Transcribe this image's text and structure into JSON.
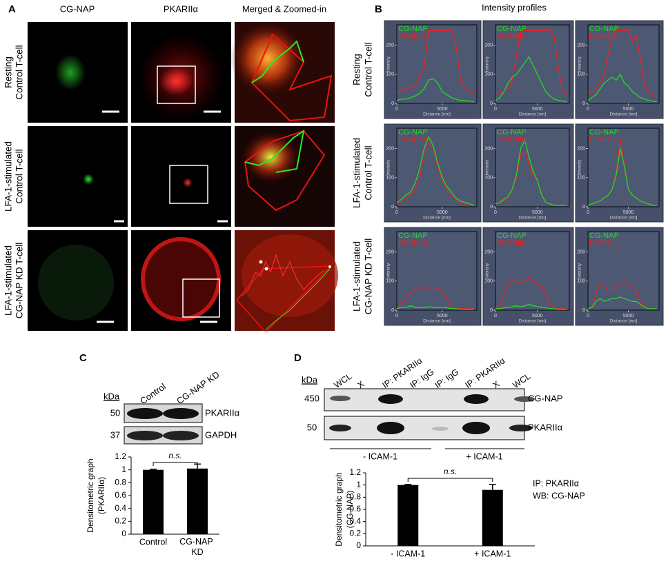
{
  "figure": {
    "A": {
      "label": "A",
      "columns": [
        "CG-NAP",
        "PKARIIα",
        "Merged & Zoomed-in"
      ],
      "rows": [
        [
          "Resting",
          "Control T-cell"
        ],
        [
          "LFA-1-stimulated",
          "Control T-cell"
        ],
        [
          "LFA-1-stimulated",
          "CG-NAP KD T-cell"
        ]
      ]
    },
    "B": {
      "label": "B",
      "title": "Intensity profiles",
      "rows": [
        [
          "Resting",
          "Control T-cell"
        ],
        [
          "LFA-1-stimulated",
          "Control T-cell"
        ],
        [
          "LFA-1-stimulated",
          "CG-NAP KD T-cell"
        ]
      ]
    },
    "C": {
      "label": "C",
      "blot": {
        "unit": "kDa",
        "lanes": [
          "Control",
          "CG-NAP KD"
        ],
        "markers": [
          50,
          37
        ],
        "proteins": [
          "PKARIIα",
          "GAPDH"
        ]
      }
    },
    "D": {
      "label": "D",
      "blot": {
        "unit": "kDa",
        "lanes": [
          "WCL",
          "X",
          "IP: PKARIIα",
          "IP: IgG",
          "IP: IgG",
          "IP: PKARIIα",
          "X",
          "WCL"
        ],
        "markers": [
          450,
          50
        ],
        "proteins": [
          "CG-NAP",
          "PKARIIα"
        ],
        "groups": [
          "- ICAM-1",
          "+ ICAM-1"
        ]
      },
      "note": [
        "IP: PKARIIα",
        "WB: CG-NAP"
      ]
    }
  },
  "chart_data": [
    {
      "type": "line",
      "x": [
        0,
        500,
        1000,
        1500,
        2000,
        2500,
        3000,
        3500,
        4000,
        4500,
        5000,
        5500,
        6000,
        6500,
        7000,
        7500,
        8000,
        8500
      ],
      "xlim": [
        0,
        8800
      ],
      "ylim": [
        0,
        270
      ],
      "xticks": [
        0,
        5000
      ],
      "yticks": [
        0,
        100,
        200
      ],
      "xlabel": "Distance [nm]",
      "ylabel": "Intensity",
      "series": [
        {
          "name": "CG-NAP",
          "color": "#22dd22",
          "values": [
            10,
            15,
            15,
            20,
            25,
            35,
            50,
            80,
            85,
            70,
            40,
            30,
            20,
            15,
            10,
            10,
            8,
            5
          ]
        },
        {
          "name": "PKARIIα",
          "color": "#ee2222",
          "values": [
            40,
            45,
            50,
            55,
            60,
            90,
            120,
            250,
            250,
            250,
            250,
            250,
            250,
            200,
            80,
            50,
            40,
            35
          ]
        }
      ]
    },
    {
      "type": "line",
      "x": [
        0,
        500,
        1000,
        1500,
        2000,
        2500,
        3000,
        3500,
        4000,
        4500,
        5000,
        5500,
        6000,
        6500,
        7000,
        7500,
        8000,
        8500
      ],
      "xlim": [
        0,
        8800
      ],
      "ylim": [
        0,
        270
      ],
      "xticks": [
        0,
        5000
      ],
      "yticks": [
        0,
        100,
        200
      ],
      "xlabel": "Distance [nm]",
      "ylabel": "Intensity",
      "series": [
        {
          "name": "CG-NAP",
          "color": "#22dd22",
          "values": [
            10,
            20,
            40,
            70,
            90,
            100,
            120,
            140,
            160,
            130,
            100,
            70,
            40,
            25,
            15,
            10,
            8,
            5
          ]
        },
        {
          "name": "PKARIIα",
          "color": "#ee2222",
          "values": [
            30,
            35,
            40,
            50,
            80,
            160,
            250,
            250,
            250,
            250,
            250,
            250,
            250,
            250,
            230,
            120,
            40,
            30
          ]
        }
      ]
    },
    {
      "type": "line",
      "x": [
        0,
        500,
        1000,
        1500,
        2000,
        2500,
        3000,
        3500,
        4000,
        4500,
        5000,
        5500,
        6000,
        6500,
        7000,
        7500,
        8000,
        8500
      ],
      "xlim": [
        0,
        8800
      ],
      "ylim": [
        0,
        270
      ],
      "xticks": [
        0,
        5000
      ],
      "yticks": [
        0,
        100,
        200
      ],
      "xlabel": "Distance [nm]",
      "ylabel": "Intensity",
      "series": [
        {
          "name": "CG-NAP",
          "color": "#22dd22",
          "values": [
            10,
            20,
            30,
            50,
            70,
            80,
            90,
            80,
            100,
            70,
            60,
            40,
            30,
            20,
            15,
            10,
            8,
            5
          ]
        },
        {
          "name": "PKARIIα",
          "color": "#ee2222",
          "values": [
            35,
            40,
            50,
            70,
            100,
            170,
            230,
            250,
            250,
            250,
            250,
            210,
            230,
            150,
            60,
            40,
            30,
            20
          ]
        }
      ]
    },
    {
      "type": "line",
      "x": [
        0,
        500,
        1000,
        1500,
        2000,
        2500,
        3000,
        3500,
        4000,
        4500,
        5000,
        5500,
        6000,
        6500,
        7000,
        7500,
        8000,
        8500
      ],
      "xlim": [
        0,
        8800
      ],
      "ylim": [
        0,
        270
      ],
      "xticks": [
        0,
        5000
      ],
      "yticks": [
        0,
        100,
        200
      ],
      "xlabel": "Distance [nm]",
      "ylabel": "Intensity",
      "series": [
        {
          "name": "CG-NAP",
          "color": "#22dd22",
          "values": [
            15,
            25,
            40,
            50,
            80,
            130,
            200,
            240,
            210,
            150,
            100,
            70,
            50,
            30,
            20,
            15,
            10,
            5
          ]
        },
        {
          "name": "PKARIIα",
          "color": "#ee2222",
          "values": [
            10,
            20,
            30,
            40,
            60,
            100,
            180,
            220,
            200,
            140,
            90,
            60,
            40,
            20,
            15,
            10,
            5,
            5
          ]
        }
      ]
    },
    {
      "type": "line",
      "x": [
        0,
        500,
        1000,
        1500,
        2000,
        2500,
        3000,
        3500,
        4000,
        4500,
        5000,
        5500,
        6000,
        6500,
        7000,
        7500,
        8000,
        8500
      ],
      "xlim": [
        0,
        8800
      ],
      "ylim": [
        0,
        270
      ],
      "xticks": [
        0,
        5000
      ],
      "yticks": [
        0,
        100,
        200
      ],
      "xlabel": "Distance [nm]",
      "ylabel": "Intensity",
      "series": [
        {
          "name": "CG-NAP",
          "color": "#22dd22",
          "values": [
            10,
            15,
            25,
            35,
            60,
            110,
            200,
            230,
            170,
            120,
            90,
            40,
            15,
            10,
            5,
            5,
            5,
            5
          ]
        },
        {
          "name": "PKARIIα",
          "color": "#ee2222",
          "values": [
            10,
            15,
            20,
            30,
            60,
            100,
            180,
            190,
            150,
            110,
            90,
            40,
            15,
            10,
            5,
            5,
            5,
            5
          ]
        }
      ]
    },
    {
      "type": "line",
      "x": [
        0,
        500,
        1000,
        1500,
        2000,
        2500,
        3000,
        3500,
        4000,
        4500,
        5000,
        5500,
        6000,
        6500,
        7000,
        7500,
        8000,
        8500
      ],
      "xlim": [
        0,
        8800
      ],
      "ylim": [
        0,
        270
      ],
      "xticks": [
        0,
        5000
      ],
      "yticks": [
        0,
        100,
        200
      ],
      "xlabel": "Distance [nm]",
      "ylabel": "Intensity",
      "series": [
        {
          "name": "CG-NAP",
          "color": "#22dd22",
          "values": [
            5,
            10,
            15,
            20,
            30,
            40,
            60,
            110,
            200,
            140,
            60,
            40,
            30,
            20,
            15,
            10,
            5,
            5
          ]
        },
        {
          "name": "PKARIIα",
          "color": "#ee2222",
          "values": [
            5,
            10,
            15,
            20,
            30,
            40,
            60,
            120,
            230,
            150,
            60,
            40,
            30,
            20,
            15,
            10,
            5,
            5
          ]
        }
      ]
    },
    {
      "type": "line",
      "x": [
        0,
        500,
        1000,
        1500,
        2000,
        2500,
        3000,
        3500,
        4000,
        4500,
        5000,
        5500,
        6000,
        6500,
        7000,
        7500,
        8000,
        8500
      ],
      "xlim": [
        0,
        8800
      ],
      "ylim": [
        0,
        270
      ],
      "xticks": [
        0,
        5000
      ],
      "yticks": [
        0,
        100,
        200
      ],
      "xlabel": "Distance [nm]",
      "ylabel": "Intensity",
      "series": [
        {
          "name": "CG-NAP",
          "color": "#22dd22",
          "values": [
            5,
            10,
            10,
            15,
            10,
            10,
            8,
            12,
            10,
            8,
            10,
            8,
            5,
            5,
            3,
            3,
            3,
            3
          ]
        },
        {
          "name": "PKARIIα",
          "color": "#ee2222",
          "values": [
            5,
            20,
            40,
            60,
            70,
            80,
            75,
            80,
            70,
            75,
            60,
            40,
            10,
            5,
            5,
            5,
            5,
            5
          ]
        }
      ]
    },
    {
      "type": "line",
      "x": [
        0,
        500,
        1000,
        1500,
        2000,
        2500,
        3000,
        3500,
        4000,
        4500,
        5000,
        5500,
        6000,
        6500,
        7000,
        7500,
        8000,
        8500
      ],
      "xlim": [
        0,
        8800
      ],
      "ylim": [
        0,
        270
      ],
      "xticks": [
        0,
        5000
      ],
      "yticks": [
        0,
        100,
        200
      ],
      "xlabel": "Distance [nm]",
      "ylabel": "Intensity",
      "series": [
        {
          "name": "CG-NAP",
          "color": "#22dd22",
          "values": [
            5,
            5,
            8,
            10,
            12,
            15,
            12,
            15,
            20,
            15,
            12,
            10,
            8,
            5,
            5,
            3,
            3,
            3
          ]
        },
        {
          "name": "PKARIIα",
          "color": "#ee2222",
          "values": [
            5,
            10,
            60,
            90,
            100,
            100,
            95,
            100,
            110,
            100,
            90,
            80,
            60,
            20,
            5,
            5,
            5,
            5
          ]
        }
      ]
    },
    {
      "type": "line",
      "x": [
        0,
        500,
        1000,
        1500,
        2000,
        2500,
        3000,
        3500,
        4000,
        4500,
        5000,
        5500,
        6000,
        6500,
        7000,
        7500,
        8000,
        8500
      ],
      "xlim": [
        0,
        8800
      ],
      "ylim": [
        0,
        270
      ],
      "xticks": [
        0,
        5000
      ],
      "yticks": [
        0,
        100,
        200
      ],
      "xlabel": "Distance [nm]",
      "ylabel": "Intensity",
      "series": [
        {
          "name": "CG-NAP",
          "color": "#22dd22",
          "values": [
            5,
            10,
            30,
            40,
            30,
            35,
            40,
            40,
            45,
            40,
            35,
            30,
            30,
            20,
            10,
            5,
            5,
            5
          ]
        },
        {
          "name": "PKARIIα",
          "color": "#ee2222",
          "values": [
            5,
            10,
            60,
            90,
            80,
            70,
            70,
            80,
            90,
            95,
            90,
            80,
            60,
            30,
            10,
            5,
            5,
            5
          ]
        }
      ]
    },
    {
      "type": "bar",
      "categories": [
        "Control",
        "CG-NAP KD"
      ],
      "values": [
        1,
        1.02
      ],
      "errors": [
        0.01,
        0.07
      ],
      "color": "#000000",
      "ylim": [
        0,
        1.2
      ],
      "yticks": [
        0,
        0.2,
        0.4,
        0.6,
        0.8,
        1,
        1.2
      ],
      "ylabel": [
        "Densitometric graph",
        "(PKARIIα)"
      ],
      "annotation": "n.s."
    },
    {
      "type": "bar",
      "categories": [
        "- ICAM-1",
        "+ ICAM-1"
      ],
      "values": [
        1,
        0.92
      ],
      "errors": [
        0.01,
        0.09
      ],
      "color": "#000000",
      "ylim": [
        0,
        1.2
      ],
      "yticks": [
        0,
        0.2,
        0.4,
        0.6,
        0.8,
        1,
        1.2
      ],
      "ylabel": [
        "Densitometric graph",
        "(CG-NAP)"
      ],
      "annotation": "n.s."
    }
  ]
}
